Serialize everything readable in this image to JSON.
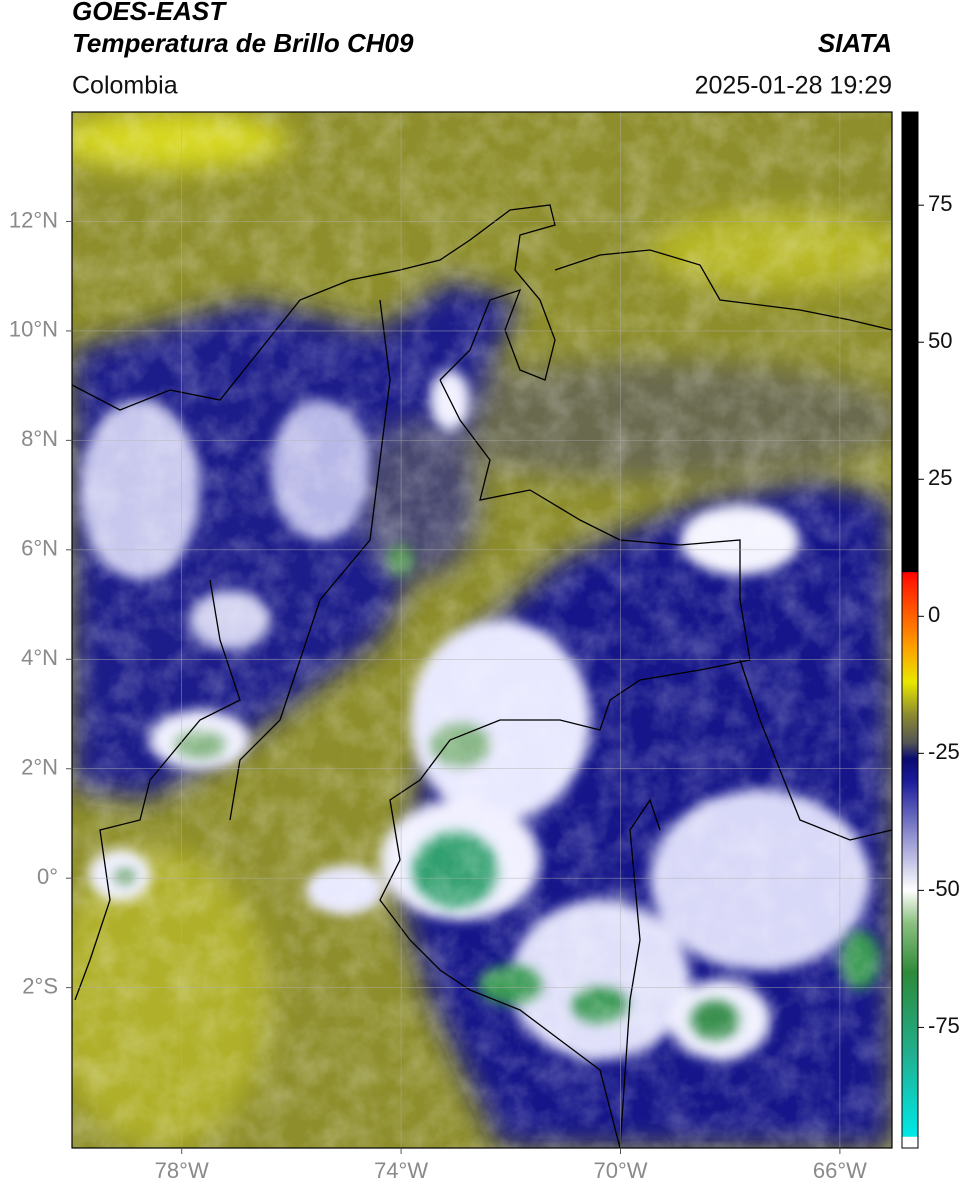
{
  "chart_data": {
    "type": "map",
    "title": "GOES-EAST",
    "subtitle": "Temperatura de Brillo CH09",
    "source": "SIATA",
    "region": "Colombia",
    "datetime": "2025-01-28 19:29",
    "xlim": [
      -80,
      -65.05
    ],
    "ylim": [
      -4.93,
      14
    ],
    "xticks": [
      {
        "value": -78,
        "label": "78°W"
      },
      {
        "value": -74,
        "label": "74°W"
      },
      {
        "value": -70,
        "label": "70°W"
      },
      {
        "value": -66,
        "label": "66°W"
      }
    ],
    "yticks": [
      {
        "value": -2,
        "label": "2°S"
      },
      {
        "value": 0,
        "label": "0°"
      },
      {
        "value": 2,
        "label": "2°N"
      },
      {
        "value": 4,
        "label": "4°N"
      },
      {
        "value": 6,
        "label": "6°N"
      },
      {
        "value": 8,
        "label": "8°N"
      },
      {
        "value": 10,
        "label": "10°N"
      },
      {
        "value": 12,
        "label": "12°N"
      }
    ],
    "grid": true,
    "colorbar": {
      "lim": [
        -97,
        92
      ],
      "ticks": [
        -75,
        -50,
        -25,
        0,
        25,
        50,
        75
      ],
      "stops": [
        {
          "value": -97,
          "color": "#ffffff"
        },
        {
          "value": -95,
          "color": "#ffffff"
        },
        {
          "value": -94.9,
          "color": "#00e8e8"
        },
        {
          "value": -80,
          "color": "#20b090"
        },
        {
          "value": -65,
          "color": "#2e8a3a"
        },
        {
          "value": -56,
          "color": "#8ac080"
        },
        {
          "value": -50,
          "color": "#ffffff"
        },
        {
          "value": -40,
          "color": "#9090d0"
        },
        {
          "value": -30,
          "color": "#1a1a9a"
        },
        {
          "value": -26,
          "color": "#0a0a70"
        },
        {
          "value": -23,
          "color": "#555555"
        },
        {
          "value": -18,
          "color": "#8a8a30"
        },
        {
          "value": -12,
          "color": "#e8e800"
        },
        {
          "value": -5,
          "color": "#ff9900"
        },
        {
          "value": 6,
          "color": "#ff2000"
        },
        {
          "value": 8,
          "color": "#ff0000"
        },
        {
          "value": 8.1,
          "color": "#000000"
        },
        {
          "value": 92,
          "color": "#000000"
        }
      ]
    }
  }
}
